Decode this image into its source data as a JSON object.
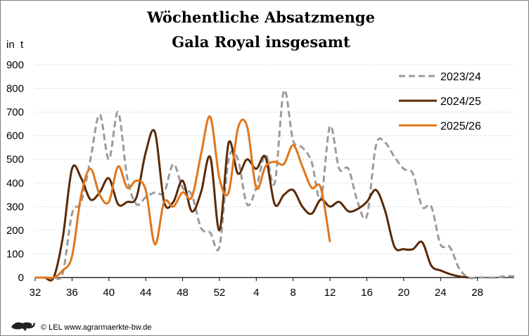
{
  "chart_data": {
    "type": "line",
    "title": "Wöchentliche Absatzmenge",
    "subtitle": "Gala Royal insgesamt",
    "ylabel": "in  t",
    "xlabel": "",
    "ylim": [
      0,
      900
    ],
    "yticks": [
      0,
      100,
      200,
      300,
      400,
      500,
      600,
      700,
      800,
      900
    ],
    "x_weeks": [
      32,
      33,
      34,
      35,
      36,
      37,
      38,
      39,
      40,
      41,
      42,
      43,
      44,
      45,
      46,
      47,
      48,
      49,
      50,
      51,
      52,
      53,
      54,
      55,
      56,
      57,
      58,
      59,
      60,
      61,
      62,
      63,
      64,
      65,
      66,
      67,
      68,
      69,
      70,
      71,
      72,
      73,
      74,
      75,
      76,
      77,
      78,
      79,
      80,
      81,
      82,
      83,
      84
    ],
    "xtick_labels": [
      "32",
      "36",
      "40",
      "44",
      "48",
      "52",
      "4",
      "8",
      "12",
      "16",
      "20",
      "24",
      "28"
    ],
    "grid": "horizontal",
    "legend_position": "top-right",
    "series": [
      {
        "name": "2023/24",
        "color": "#9b9b9b",
        "dash": "dashed",
        "values": [
          0,
          0,
          0,
          20,
          270,
          320,
          500,
          690,
          500,
          700,
          420,
          310,
          340,
          360,
          360,
          480,
          380,
          350,
          210,
          190,
          130,
          500,
          500,
          310,
          380,
          520,
          400,
          790,
          580,
          550,
          490,
          330,
          640,
          460,
          460,
          320,
          260,
          560,
          570,
          510,
          460,
          440,
          300,
          300,
          140,
          130,
          40,
          0,
          0,
          0,
          0,
          5,
          5
        ]
      },
      {
        "name": "2024/25",
        "color": "#5a2a06",
        "dash": "solid",
        "values": [
          0,
          0,
          0,
          170,
          460,
          420,
          330,
          360,
          420,
          310,
          320,
          340,
          530,
          615,
          320,
          320,
          410,
          280,
          360,
          510,
          200,
          570,
          440,
          500,
          460,
          510,
          310,
          350,
          370,
          300,
          270,
          330,
          300,
          320,
          280,
          290,
          320,
          370,
          280,
          130,
          120,
          120,
          150,
          50,
          30,
          15,
          5,
          0,
          null,
          null,
          null,
          null,
          null
        ]
      },
      {
        "name": "2025/26",
        "color": "#e0761c",
        "dash": "solid",
        "values": [
          0,
          0,
          0,
          30,
          90,
          350,
          460,
          350,
          320,
          470,
          380,
          410,
          370,
          140,
          320,
          300,
          360,
          340,
          520,
          680,
          420,
          360,
          630,
          640,
          380,
          470,
          490,
          480,
          560,
          470,
          380,
          380,
          150,
          null,
          null,
          null,
          null,
          null,
          null,
          null,
          null,
          null,
          null,
          null,
          null,
          null,
          null,
          null,
          null,
          null,
          null,
          null,
          null
        ]
      }
    ]
  },
  "footer": {
    "lion-logo-icon": "lion-logo-icon",
    "text": "© LEL www.agrarmaerkte-bw.de"
  }
}
